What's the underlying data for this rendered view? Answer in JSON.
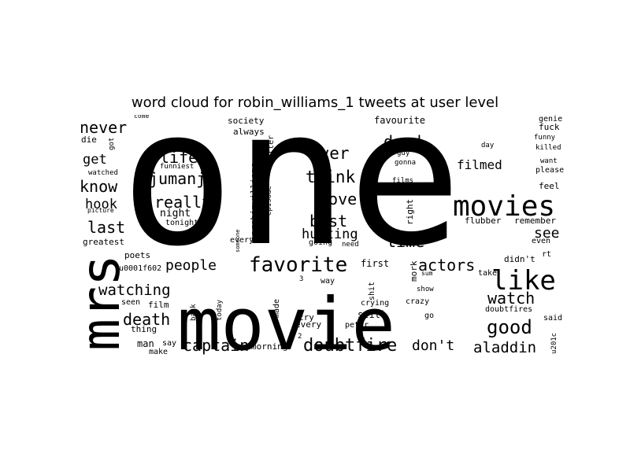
{
  "title": "word cloud for robin_williams_1 tweets at user level",
  "word_cloud": {
    "text_color": "#000000",
    "background_color": "#ffffff",
    "words": [
      "one",
      "movie",
      "mrs",
      "movies",
      "like",
      "favorite",
      "doubtfire",
      "captain",
      "death",
      "watching",
      "people",
      "good",
      "watch",
      "actors",
      "aladdin",
      "really",
      "jumanji",
      "life",
      "think",
      "ever",
      "love",
      "best",
      "hunting",
      "dead",
      "filmed",
      "time",
      "see",
      "last",
      "know",
      "never",
      "hook",
      "get",
      "don't",
      "greatest",
      "u0001f602",
      "poets",
      "thing",
      "film",
      "seen",
      "man",
      "say",
      "make",
      "back",
      "today",
      "morning",
      "made",
      "cry",
      "every",
      "peter",
      "still",
      "crying",
      "crazy",
      "go",
      "show",
      "take",
      "sum",
      "mork",
      "shit",
      "first",
      "way",
      "3",
      "2",
      "need",
      "going",
      "everyone",
      "someone",
      "episode",
      "iprobinwilliams",
      "better",
      "always",
      "society",
      "favourite",
      "guy",
      "gonna",
      "films",
      "right",
      "flubber",
      "remember",
      "even",
      "rt",
      "didn't",
      "doubtfires",
      "said",
      "u201c",
      "feel",
      "please",
      "want",
      "killed",
      "funny",
      "fuck",
      "genie",
      "day",
      "come",
      "got",
      "die",
      "watched",
      "picture",
      "funniest",
      "night",
      "tonight"
    ]
  }
}
